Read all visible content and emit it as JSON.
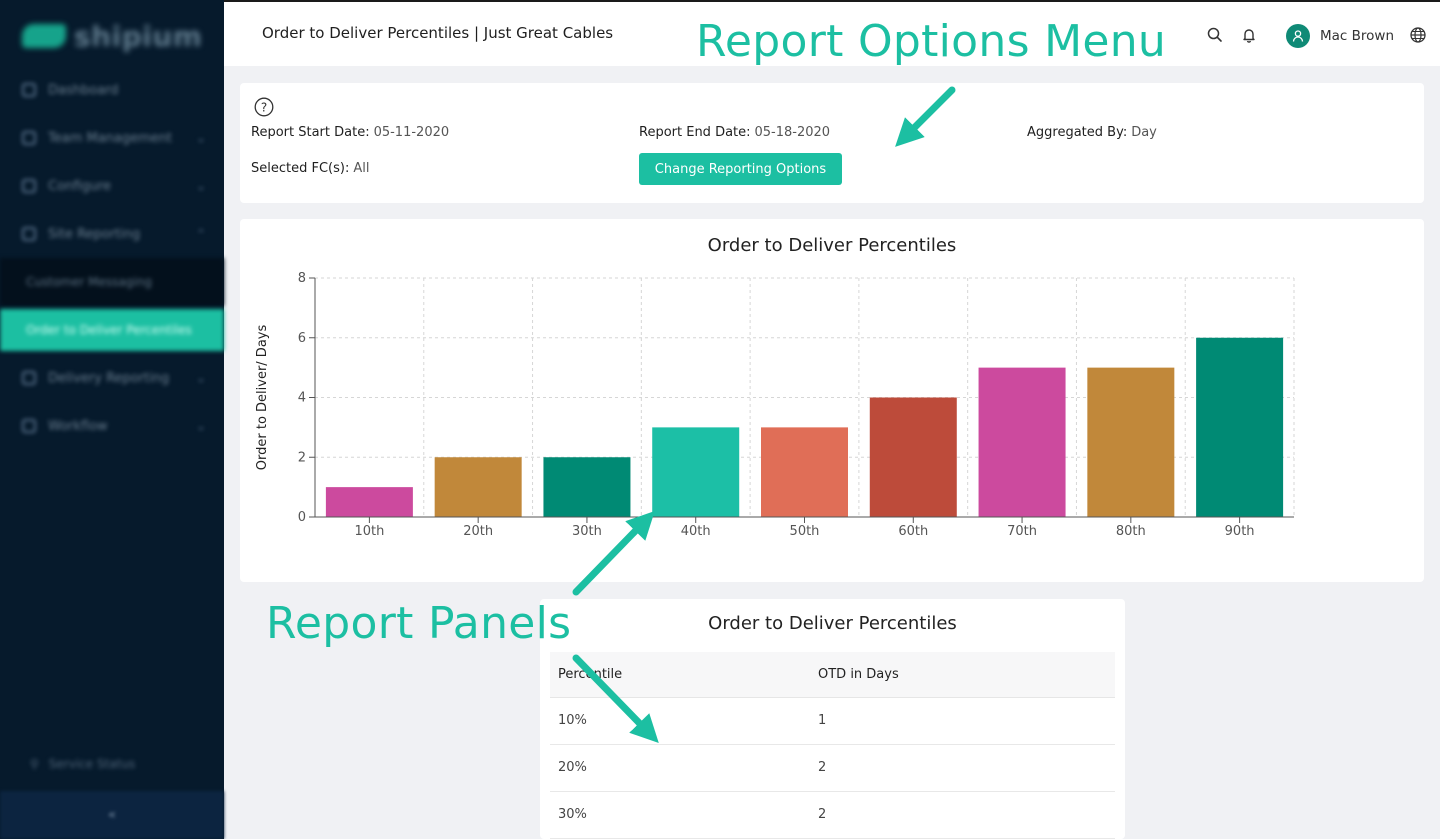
{
  "sidebar": {
    "logo": "shipium",
    "items": [
      {
        "label": "Dashboard"
      },
      {
        "label": "Team Management"
      },
      {
        "label": "Configure"
      },
      {
        "label": "Site Reporting"
      }
    ],
    "sub_items": [
      {
        "label": "Customer Messaging"
      },
      {
        "label": "Order to Deliver Percentiles"
      }
    ],
    "items_after": [
      {
        "label": "Delivery Reporting"
      },
      {
        "label": "Workflow"
      }
    ],
    "status": "Service Status",
    "collapse": "«"
  },
  "header": {
    "title": "Order to Deliver Percentiles | Just Great Cables",
    "user_name": "Mac Brown"
  },
  "options": {
    "help": "?",
    "start_label": "Report Start Date:",
    "start_value": "05-11-2020",
    "end_label": "Report End Date:",
    "end_value": "05-18-2020",
    "agg_label": "Aggregated By:",
    "agg_value": "Day",
    "fc_label": "Selected FC(s):",
    "fc_value": "All",
    "button": "Change Reporting Options"
  },
  "chart_data": {
    "type": "bar",
    "title": "Order to Deliver Percentiles",
    "xlabel": "",
    "ylabel": "Order to Deliver/ Days",
    "categories": [
      "10th",
      "20th",
      "30th",
      "40th",
      "50th",
      "60th",
      "70th",
      "80th",
      "90th"
    ],
    "values": [
      1,
      2,
      2,
      3,
      3,
      4,
      5,
      5,
      6
    ],
    "colors": [
      "#cc4a9e",
      "#c1883a",
      "#008a74",
      "#1cbfa6",
      "#e06e57",
      "#bd4b3a",
      "#cc4a9e",
      "#c1883a",
      "#008a74"
    ],
    "ylim": [
      0,
      8
    ],
    "yticks": [
      0,
      2,
      4,
      6,
      8
    ],
    "grid": true
  },
  "table": {
    "title": "Order to Deliver Percentiles",
    "headers": [
      "Percentile",
      "OTD in Days"
    ],
    "rows": [
      [
        "10%",
        "1"
      ],
      [
        "20%",
        "2"
      ],
      [
        "30%",
        "2"
      ]
    ]
  },
  "annotations": {
    "options_menu": "Report Options Menu",
    "panels": "Report Panels"
  },
  "colors": {
    "accent": "#1cbfa2",
    "sidebar": "#061a2c"
  }
}
